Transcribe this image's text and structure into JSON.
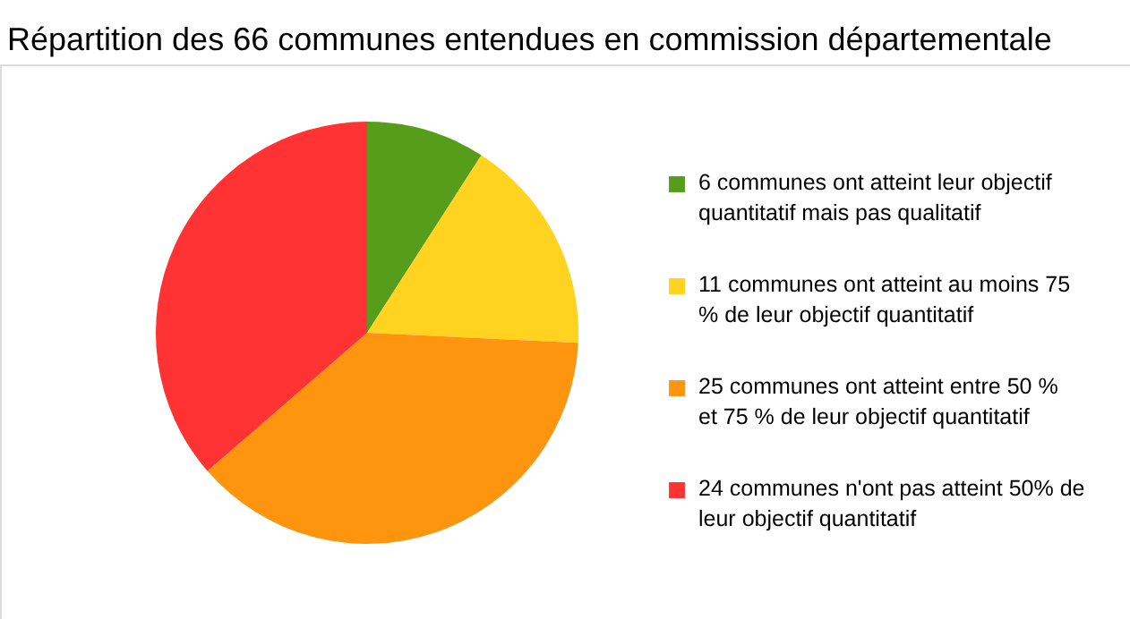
{
  "chart_data": {
    "type": "pie",
    "title": "Répartition des 66 communes entendues en commission départementale",
    "categories": [
      "6 communes ont atteint leur objectif quantitatif mais pas qualitatif",
      "11 communes ont atteint au moins 75 % de leur objectif quantitatif",
      "25 communes ont atteint entre 50 % et 75 % de leur objectif quantitatif",
      "24 communes n'ont pas atteint 50% de leur objectif quantitatif"
    ],
    "values": [
      6,
      11,
      25,
      24
    ],
    "colors": [
      "#579d1c",
      "#ffd320",
      "#ff950e",
      "#ff3333"
    ],
    "legend": "right"
  }
}
